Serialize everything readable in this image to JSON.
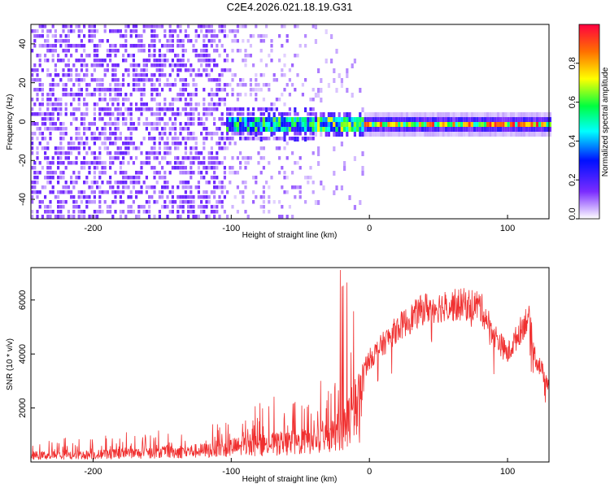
{
  "title": "C2E4.2026.021.18.19.G31",
  "chart_data": [
    {
      "type": "heatmap",
      "name": "spectrogram",
      "xlabel": "Height of straight line (km)",
      "ylabel": "Frequency (Hz)",
      "xlim": [
        -245,
        130
      ],
      "ylim": [
        -50,
        50
      ],
      "xticks": [
        -200,
        -100,
        0,
        100
      ],
      "yticks": [
        -40,
        -20,
        0,
        20,
        40
      ],
      "colorbar": {
        "label": "Normalized spectral amplitude",
        "range": [
          0.0,
          1.0
        ],
        "ticks": [
          0.0,
          0.2,
          0.4,
          0.6,
          0.8
        ],
        "colors": [
          "#ffffff",
          "#7a2cff",
          "#0010ff",
          "#00ffff",
          "#00ff40",
          "#ffff00",
          "#ff7000",
          "#ff0040"
        ]
      },
      "regions": [
        {
          "from_km": -245,
          "to_km": -105,
          "description": "broadband noise",
          "peak_amplitude": 0.15
        },
        {
          "from_km": -105,
          "to_km": -5,
          "description": "signal emerging near 0 Hz",
          "peak_amplitude": 0.6
        },
        {
          "from_km": -5,
          "to_km": 130,
          "description": "strong narrow line at 0 Hz",
          "peak_amplitude": 1.0
        }
      ]
    },
    {
      "type": "line",
      "name": "snr",
      "xlabel": "Height of straight line (km)",
      "ylabel": "SNR (10 * v/v)",
      "xlim": [
        -245,
        130
      ],
      "ylim": [
        0,
        7200
      ],
      "xticks": [
        -200,
        -100,
        0,
        100
      ],
      "yticks": [
        2000,
        4000,
        6000
      ],
      "color": "#f03030",
      "envelope_km": [
        -245,
        -200,
        -160,
        -120,
        -100,
        -70,
        -50,
        -30,
        -20,
        -10,
        0,
        20,
        40,
        60,
        70,
        80,
        90,
        100,
        115,
        120,
        130
      ],
      "envelope_snr": [
        400,
        450,
        550,
        700,
        900,
        1100,
        1200,
        1500,
        2000,
        3200,
        4000,
        5200,
        6000,
        6100,
        6150,
        6100,
        5000,
        4200,
        5700,
        4100,
        3000
      ]
    }
  ]
}
